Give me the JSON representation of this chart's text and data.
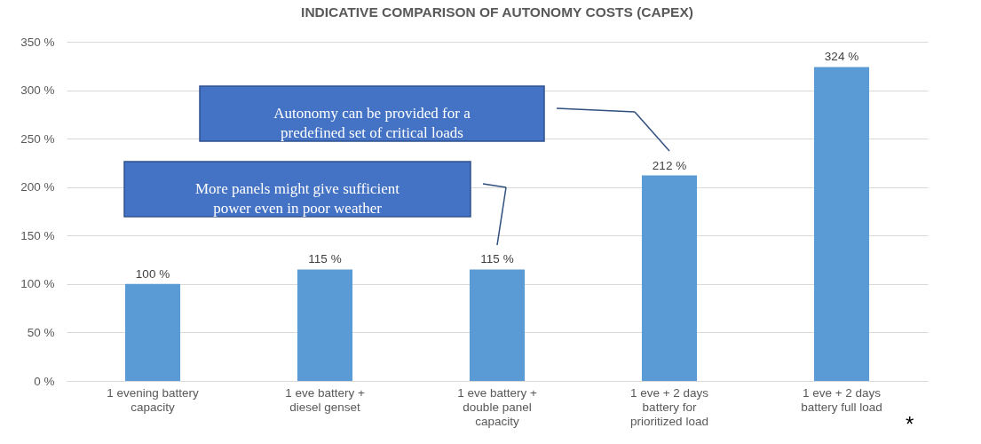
{
  "chart_data": {
    "type": "bar",
    "title": "INDICATIVE COMPARISON OF AUTONOMY COSTS (CAPEX)",
    "categories": [
      "1 evening battery capacity",
      "1 eve battery + diesel genset",
      "1 eve battery + double panel capacity",
      "1 eve + 2 days battery for prioritized load",
      "1 eve + 2 days battery full load"
    ],
    "values": [
      100,
      115,
      115,
      212,
      324
    ],
    "value_labels": [
      "100 %",
      "115 %",
      "115 %",
      "212 %",
      "324 %"
    ],
    "color": "#5b9bd5",
    "ylim": [
      0,
      350
    ],
    "yticks": [
      {
        "value": 0,
        "label": "0 %"
      },
      {
        "value": 50,
        "label": "50 %"
      },
      {
        "value": 100,
        "label": "100 %"
      },
      {
        "value": 150,
        "label": "150 %"
      },
      {
        "value": 200,
        "label": "200 %"
      },
      {
        "value": 250,
        "label": "250 %"
      },
      {
        "value": 300,
        "label": "300 %"
      },
      {
        "value": 350,
        "label": "350 %"
      }
    ],
    "grid": "y",
    "annotations": [
      "Autonomy can be provided for a predefined set of critical loads",
      "More panels might give sufficient power even in poor weather",
      "*"
    ]
  }
}
